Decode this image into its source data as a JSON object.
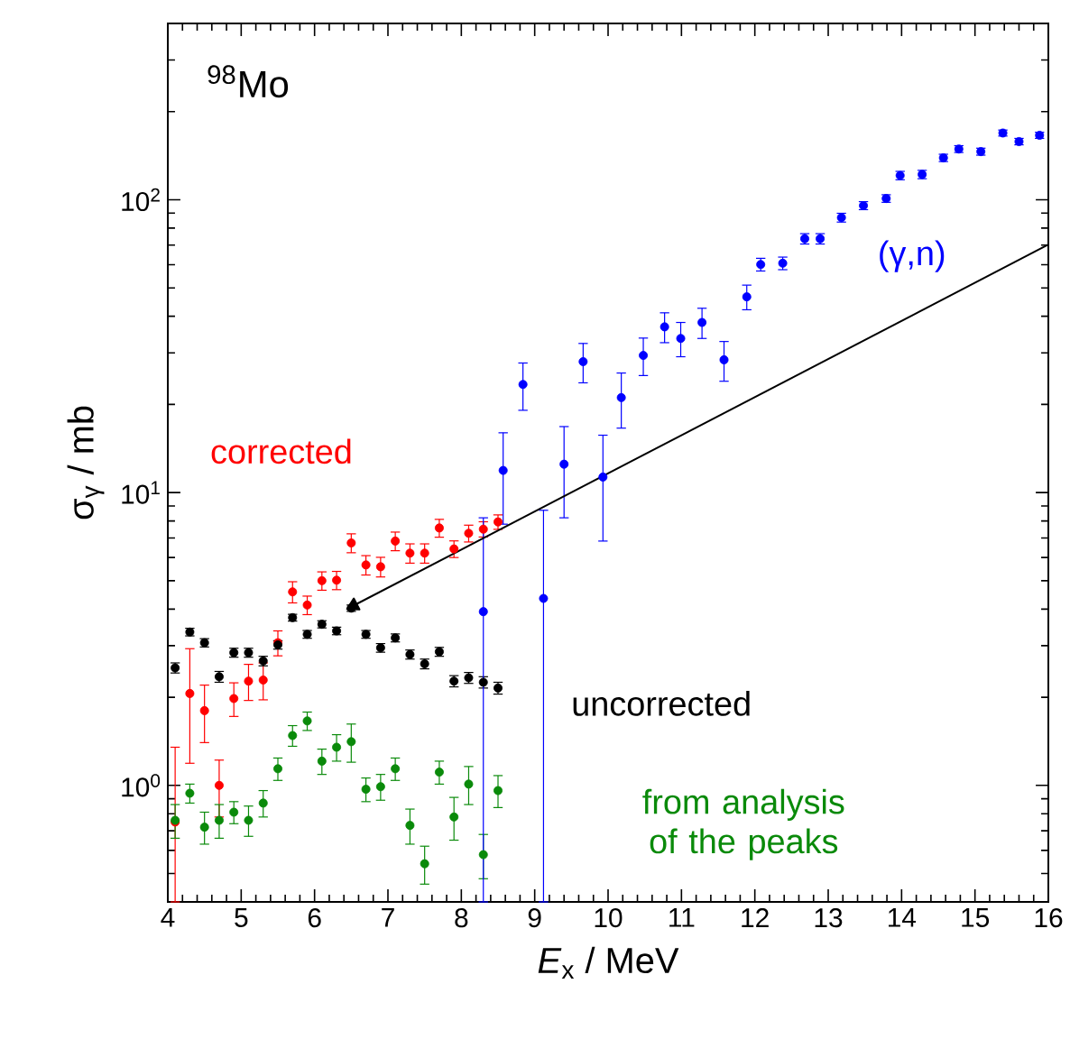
{
  "chart_data": {
    "type": "scatter",
    "xlabel": "*E*$_{x}$ / MeV",
    "ylabel": "σ$_{γ}$ / mb",
    "annotations": [
      "$^{98}$Mo"
    ],
    "log": "y",
    "grid": false,
    "legend": false,
    "marker": "circle",
    "xlim": [
      4,
      16
    ],
    "ylim": [
      0.4,
      400
    ],
    "xticks": [
      4,
      {
        "value": 4.2,
        "label": null
      },
      {
        "value": 4.4,
        "label": null
      },
      {
        "value": 4.6,
        "label": null
      },
      {
        "value": 4.8,
        "label": null
      },
      5,
      {
        "value": 5.2,
        "label": null
      },
      {
        "value": 5.4,
        "label": null
      },
      {
        "value": 5.6,
        "label": null
      },
      {
        "value": 5.8,
        "label": null
      },
      6,
      {
        "value": 6.2,
        "label": null
      },
      {
        "value": 6.4,
        "label": null
      },
      {
        "value": 6.6,
        "label": null
      },
      {
        "value": 6.8,
        "label": null
      },
      7,
      {
        "value": 7.2,
        "label": null
      },
      {
        "value": 7.4,
        "label": null
      },
      {
        "value": 7.6,
        "label": null
      },
      {
        "value": 7.8,
        "label": null
      },
      8,
      {
        "value": 8.2,
        "label": null
      },
      {
        "value": 8.4,
        "label": null
      },
      {
        "value": 8.6,
        "label": null
      },
      {
        "value": 8.8,
        "label": null
      },
      9,
      {
        "value": 9.2,
        "label": null
      },
      {
        "value": 9.4,
        "label": null
      },
      {
        "value": 9.6,
        "label": null
      },
      {
        "value": 9.8,
        "label": null
      },
      10,
      {
        "value": 10.2,
        "label": null
      },
      {
        "value": 10.4,
        "label": null
      },
      {
        "value": 10.6,
        "label": null
      },
      {
        "value": 10.8,
        "label": null
      },
      11,
      {
        "value": 11.2,
        "label": null
      },
      {
        "value": 11.4,
        "label": null
      },
      {
        "value": 11.6,
        "label": null
      },
      {
        "value": 11.8,
        "label": null
      },
      12,
      {
        "value": 12.2,
        "label": null
      },
      {
        "value": 12.4,
        "label": null
      },
      {
        "value": 12.6,
        "label": null
      },
      {
        "value": 12.8,
        "label": null
      },
      13,
      {
        "value": 13.2,
        "label": null
      },
      {
        "value": 13.4,
        "label": null
      },
      {
        "value": 13.6,
        "label": null
      },
      {
        "value": 13.8,
        "label": null
      },
      14,
      {
        "value": 14.2,
        "label": null
      },
      {
        "value": 14.4,
        "label": null
      },
      {
        "value": 14.6,
        "label": null
      },
      {
        "value": 14.8,
        "label": null
      },
      15,
      {
        "value": 15.2,
        "label": null
      },
      {
        "value": 15.4,
        "label": null
      },
      {
        "value": 15.6,
        "label": null
      },
      {
        "value": 15.8,
        "label": null
      },
      16
    ],
    "yticks": [
      {
        "value": 0.4,
        "label": null
      },
      {
        "value": 0.5,
        "label": null
      },
      {
        "value": 0.6,
        "label": null
      },
      {
        "value": 0.7,
        "label": null
      },
      {
        "value": 0.8,
        "label": null
      },
      {
        "value": 0.9,
        "label": null
      },
      {
        "value": 1,
        "label": "10$^{0}$"
      },
      {
        "value": 2,
        "label": null
      },
      {
        "value": 3,
        "label": null
      },
      {
        "value": 4,
        "label": null
      },
      {
        "value": 5,
        "label": null
      },
      {
        "value": 6,
        "label": null
      },
      {
        "value": 7,
        "label": null
      },
      {
        "value": 8,
        "label": null
      },
      {
        "value": 9,
        "label": null
      },
      {
        "value": 10,
        "label": "10$^{1}$"
      },
      {
        "value": 20,
        "label": null
      },
      {
        "value": 30,
        "label": null
      },
      {
        "value": 40,
        "label": null
      },
      {
        "value": 50,
        "label": null
      },
      {
        "value": 60,
        "label": null
      },
      {
        "value": 70,
        "label": null
      },
      {
        "value": 80,
        "label": null
      },
      {
        "value": 90,
        "label": null
      },
      {
        "value": 100,
        "label": "10$^{2}$"
      },
      {
        "value": 200,
        "label": null
      },
      {
        "value": 300,
        "label": null
      },
      {
        "value": 400,
        "label": null
      }
    ],
    "series": [
      {
        "name": "corrected",
        "color": "#ff0000",
        "x": [
          4.1,
          4.3,
          4.5,
          4.7,
          4.9,
          5.1,
          5.3,
          5.5,
          5.7,
          5.9,
          6.1,
          6.3,
          6.5,
          6.7,
          6.9,
          7.1,
          7.3,
          7.5,
          7.7,
          7.9,
          8.1,
          8.3,
          8.5
        ],
        "values": [
          0.75,
          2.06,
          1.8,
          1.0,
          1.98,
          2.27,
          2.29,
          3.07,
          4.58,
          4.13,
          5.0,
          5.02,
          6.73,
          5.66,
          5.58,
          6.83,
          6.21,
          6.21,
          7.57,
          6.42,
          7.26,
          7.5,
          7.94
        ],
        "errors": [
          [
            0.4,
            1.35
          ],
          0.87,
          0.4,
          0.22,
          0.26,
          0.32,
          0.33,
          0.3,
          0.38,
          0.3,
          0.36,
          0.36,
          0.5,
          0.43,
          0.43,
          0.5,
          0.47,
          0.47,
          0.53,
          0.42,
          0.48,
          0.45,
          0.45
        ]
      },
      {
        "name": "uncorrected",
        "color": "#000000",
        "x": [
          4.1,
          4.3,
          4.5,
          4.7,
          4.9,
          5.1,
          5.3,
          5.5,
          5.7,
          5.9,
          6.1,
          6.3,
          6.5,
          6.7,
          6.9,
          7.1,
          7.3,
          7.5,
          7.7,
          7.9,
          8.1,
          8.3,
          8.5
        ],
        "values": [
          2.52,
          3.34,
          3.07,
          2.35,
          2.84,
          2.84,
          2.66,
          3.02,
          3.74,
          3.28,
          3.55,
          3.37,
          4.03,
          3.28,
          2.95,
          3.19,
          2.8,
          2.6,
          2.86,
          2.27,
          2.33,
          2.25,
          2.15
        ],
        "errors": [
          0.1,
          0.1,
          0.1,
          0.1,
          0.1,
          0.1,
          0.1,
          0.1,
          0.1,
          0.1,
          0.1,
          0.1,
          0.1,
          0.1,
          0.1,
          0.1,
          0.1,
          0.1,
          0.1,
          0.1,
          0.1,
          0.1,
          0.1
        ]
      },
      {
        "name": "from analysis of the peaks",
        "color": "#0a8a0a",
        "x": [
          4.1,
          4.3,
          4.5,
          4.7,
          4.9,
          5.1,
          5.3,
          5.5,
          5.7,
          5.9,
          6.1,
          6.3,
          6.5,
          6.7,
          6.9,
          7.1,
          7.3,
          7.5,
          7.7,
          7.9,
          8.1,
          8.3,
          8.5
        ],
        "values": [
          0.76,
          0.94,
          0.72,
          0.76,
          0.81,
          0.76,
          0.87,
          1.14,
          1.48,
          1.66,
          1.21,
          1.35,
          1.41,
          0.97,
          0.99,
          1.14,
          0.73,
          0.54,
          1.11,
          0.78,
          1.01,
          0.58,
          0.96
        ],
        "errors": [
          0.1,
          0.07,
          0.09,
          0.1,
          0.07,
          0.09,
          0.09,
          0.1,
          0.12,
          0.12,
          0.12,
          0.14,
          0.21,
          0.09,
          0.1,
          0.1,
          0.1,
          0.08,
          0.1,
          0.13,
          0.15,
          0.1,
          0.12
        ]
      },
      {
        "name": "(γ,n)",
        "color": "#0000ff",
        "x": [
          8.3,
          8.57,
          8.84,
          9.12,
          9.4,
          9.66,
          9.93,
          10.18,
          10.48,
          10.77,
          10.99,
          11.28,
          11.58,
          11.89,
          12.08,
          12.38,
          12.68,
          12.89,
          13.18,
          13.48,
          13.79,
          13.98,
          14.28,
          14.57,
          14.78,
          15.08,
          15.38,
          15.6,
          15.88
        ],
        "values": [
          3.92,
          11.9,
          23.4,
          4.35,
          12.5,
          28.0,
          11.3,
          21.1,
          29.4,
          36.8,
          33.6,
          38.1,
          28.4,
          46.6,
          60.1,
          60.7,
          73.6,
          73.6,
          86.9,
          95.5,
          101,
          121,
          122,
          139,
          149,
          146,
          169,
          158,
          166
        ],
        "errors": [
          [
            0.4,
            8.2
          ],
          4.1,
          4.3,
          [
            0.4,
            8.7
          ],
          4.3,
          4.3,
          [
            6.83,
            15.7
          ],
          4.5,
          4.3,
          4.3,
          4.5,
          4.5,
          4.4,
          4.5,
          3,
          3,
          3,
          3,
          3,
          3,
          3,
          4,
          4,
          4,
          4,
          4,
          4,
          4,
          4
        ]
      },
      {
        "type": "line",
        "color": "#000000",
        "marker": "triangle",
        "x": [
          16,
          6.53
        ],
        "values": [
          70.3,
          4.11
        ]
      }
    ]
  }
}
